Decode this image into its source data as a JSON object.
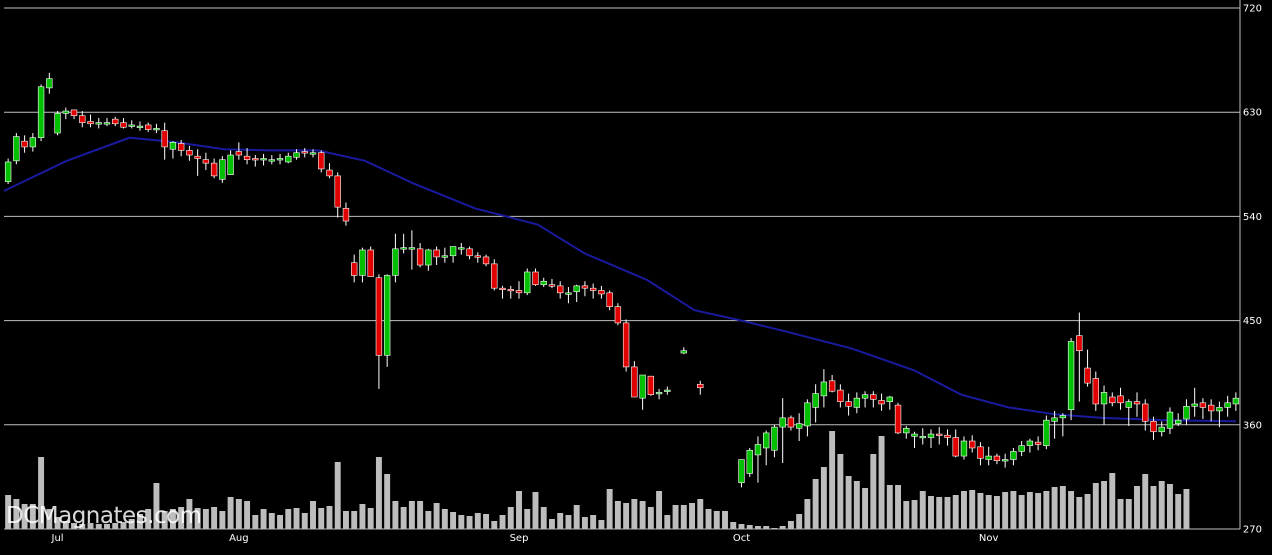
{
  "watermark": "DCMagnates.com",
  "colors": {
    "background": "#000000",
    "grid": "#bfbfbf",
    "up": "#00c000",
    "down": "#e00000",
    "wick": "#ffffff",
    "volume": "#bdbdbd",
    "ma": "#1a1a9e"
  },
  "chart_data": {
    "type": "candlestick",
    "title": "",
    "xlabel": "",
    "ylabel": "",
    "ylim": [
      270,
      720
    ],
    "yticks": [
      720,
      630,
      540,
      450,
      360,
      270
    ],
    "x_labels": [
      {
        "label": "Jul",
        "index": 6
      },
      {
        "label": "Aug",
        "index": 28
      },
      {
        "label": "Sep",
        "index": 62
      },
      {
        "label": "Oct",
        "index": 89
      },
      {
        "label": "Nov",
        "index": 119
      }
    ],
    "grid": true,
    "series": [
      {
        "type": "ohlc",
        "values": [
          [
            570,
            590,
            568,
            587
          ],
          [
            588,
            612,
            585,
            609
          ],
          [
            605,
            610,
            595,
            600
          ],
          [
            600,
            612,
            596,
            608
          ],
          [
            608,
            654,
            605,
            652
          ],
          [
            651,
            664,
            646,
            659
          ],
          [
            612,
            631,
            610,
            629
          ],
          [
            629,
            634,
            624,
            631
          ],
          [
            632,
            632,
            624,
            627
          ],
          [
            627,
            631,
            617,
            621
          ],
          [
            622,
            628,
            617,
            620
          ],
          [
            620,
            625,
            616,
            621
          ],
          [
            621,
            625,
            618,
            621
          ],
          [
            624,
            626,
            618,
            620
          ],
          [
            621,
            625,
            616,
            617
          ],
          [
            618,
            623,
            616,
            619
          ],
          [
            617,
            622,
            614,
            618
          ],
          [
            619,
            621,
            613,
            615
          ],
          [
            616,
            620,
            612,
            616
          ],
          [
            614,
            621,
            589,
            600
          ],
          [
            598,
            605,
            590,
            604
          ],
          [
            603,
            606,
            592,
            597
          ],
          [
            597,
            601,
            588,
            593
          ],
          [
            592,
            598,
            575,
            590
          ],
          [
            589,
            595,
            580,
            586
          ],
          [
            586,
            590,
            573,
            575
          ],
          [
            572,
            592,
            569,
            589
          ],
          [
            576,
            597,
            576,
            593
          ],
          [
            596,
            604,
            589,
            593
          ],
          [
            592,
            599,
            585,
            589
          ],
          [
            590,
            593,
            583,
            589
          ],
          [
            590,
            594,
            584,
            590
          ],
          [
            589,
            593,
            585,
            589
          ],
          [
            589,
            594,
            585,
            590
          ],
          [
            587,
            595,
            586,
            592
          ],
          [
            591,
            598,
            589,
            595
          ],
          [
            596,
            599,
            591,
            595
          ],
          [
            595,
            598,
            591,
            595
          ],
          [
            595,
            597,
            578,
            581
          ],
          [
            580,
            586,
            573,
            575
          ],
          [
            575,
            578,
            539,
            548
          ],
          [
            547,
            552,
            532,
            536
          ],
          [
            500,
            507,
            483,
            489
          ],
          [
            489,
            513,
            483,
            511
          ],
          [
            511,
            514,
            489,
            488
          ],
          [
            487,
            490,
            391,
            420
          ],
          [
            420,
            490,
            410,
            489
          ],
          [
            489,
            525,
            483,
            512
          ],
          [
            512,
            525,
            508,
            513
          ],
          [
            513,
            528,
            494,
            513
          ],
          [
            512,
            517,
            496,
            498
          ],
          [
            498,
            512,
            493,
            511
          ],
          [
            511,
            514,
            498,
            505
          ],
          [
            505,
            513,
            500,
            506
          ],
          [
            506,
            511,
            500,
            514
          ],
          [
            513,
            517,
            507,
            513
          ],
          [
            512,
            514,
            503,
            506
          ],
          [
            506,
            509,
            500,
            505
          ],
          [
            505,
            507,
            497,
            499
          ],
          [
            499,
            503,
            476,
            478
          ],
          [
            478,
            480,
            469,
            477
          ],
          [
            477,
            480,
            469,
            476
          ],
          [
            476,
            484,
            469,
            474
          ],
          [
            474,
            495,
            472,
            492
          ],
          [
            492,
            495,
            480,
            481
          ],
          [
            481,
            487,
            479,
            484
          ],
          [
            481,
            486,
            478,
            480
          ],
          [
            480,
            484,
            469,
            474
          ],
          [
            473,
            479,
            465,
            474
          ],
          [
            475,
            481,
            466,
            480
          ],
          [
            480,
            484,
            471,
            478
          ],
          [
            478,
            482,
            469,
            476
          ],
          [
            476,
            480,
            469,
            473
          ],
          [
            474,
            476,
            459,
            462
          ],
          [
            462,
            465,
            446,
            448
          ],
          [
            448,
            451,
            406,
            410
          ],
          [
            410,
            415,
            384,
            384
          ],
          [
            383,
            403,
            373,
            403
          ],
          [
            402,
            402,
            385,
            386
          ],
          [
            387,
            391,
            382,
            388
          ],
          [
            390,
            393,
            386,
            390
          ],
          [
            null,
            null,
            null,
            null
          ],
          [
            422,
            427,
            421,
            424
          ],
          [
            null,
            null,
            null,
            null
          ],
          [
            395,
            398,
            386,
            392
          ],
          [
            null,
            null,
            null,
            null
          ],
          [
            null,
            null,
            null,
            null
          ],
          [
            null,
            null,
            null,
            null
          ],
          [
            null,
            null,
            null,
            null
          ],
          [
            310,
            325,
            306,
            330
          ],
          [
            318,
            340,
            315,
            338
          ],
          [
            334,
            350,
            310,
            343
          ],
          [
            340,
            355,
            325,
            353
          ],
          [
            338,
            360,
            332,
            358
          ],
          [
            358,
            383,
            327,
            366
          ],
          [
            366,
            368,
            355,
            358
          ],
          [
            357,
            370,
            346,
            361
          ],
          [
            359,
            382,
            350,
            379
          ],
          [
            375,
            395,
            362,
            387
          ],
          [
            385,
            408,
            375,
            397
          ],
          [
            398,
            403,
            388,
            389
          ],
          [
            390,
            395,
            375,
            380
          ],
          [
            380,
            387,
            368,
            376
          ],
          [
            375,
            388,
            370,
            383
          ],
          [
            383,
            389,
            375,
            386
          ],
          [
            386,
            389,
            375,
            382
          ],
          [
            381,
            387,
            372,
            378
          ],
          [
            380,
            385,
            373,
            384
          ],
          [
            377,
            379,
            352,
            353
          ],
          [
            353,
            359,
            348,
            357
          ],
          [
            350,
            354,
            340,
            352
          ],
          [
            350,
            357,
            343,
            350
          ],
          [
            349,
            356,
            340,
            352
          ],
          [
            352,
            358,
            343,
            351
          ],
          [
            351,
            356,
            342,
            349
          ],
          [
            349,
            356,
            332,
            333
          ],
          [
            333,
            350,
            330,
            346
          ],
          [
            346,
            351,
            336,
            340
          ],
          [
            341,
            345,
            325,
            331
          ],
          [
            330,
            341,
            325,
            333
          ],
          [
            333,
            335,
            326,
            329
          ],
          [
            329,
            335,
            323,
            330
          ],
          [
            330,
            340,
            325,
            337
          ],
          [
            337,
            346,
            333,
            342
          ],
          [
            342,
            348,
            336,
            346
          ],
          [
            345,
            350,
            338,
            343
          ],
          [
            342,
            368,
            339,
            364
          ],
          [
            363,
            372,
            348,
            366
          ],
          [
            366,
            370,
            350,
            368
          ],
          [
            373,
            435,
            364,
            432
          ],
          [
            437,
            457,
            380,
            424
          ],
          [
            409,
            425,
            393,
            396
          ],
          [
            400,
            406,
            372,
            378
          ],
          [
            378,
            394,
            360,
            388
          ],
          [
            384,
            388,
            376,
            379
          ],
          [
            385,
            392,
            373,
            379
          ],
          [
            375,
            382,
            359,
            380
          ],
          [
            380,
            388,
            367,
            378
          ],
          [
            378,
            382,
            355,
            363
          ],
          [
            363,
            367,
            347,
            354
          ],
          [
            354,
            363,
            350,
            358
          ],
          [
            357,
            375,
            352,
            371
          ],
          [
            361,
            370,
            359,
            364
          ],
          [
            365,
            382,
            360,
            376
          ],
          [
            376,
            392,
            367,
            378
          ],
          [
            379,
            383,
            365,
            375
          ],
          [
            377,
            382,
            363,
            372
          ],
          [
            372,
            380,
            358,
            375
          ],
          [
            375,
            385,
            367,
            379
          ],
          [
            378,
            388,
            372,
            383
          ]
        ]
      },
      {
        "type": "ma",
        "values": [
          [
            0,
            562
          ],
          [
            8,
            588
          ],
          [
            16,
            608
          ],
          [
            22,
            604
          ],
          [
            28,
            598
          ],
          [
            34,
            597
          ],
          [
            40,
            597
          ],
          [
            46,
            588
          ],
          [
            52,
            569
          ],
          [
            60,
            547
          ],
          [
            68,
            533
          ],
          [
            74,
            508
          ],
          [
            82,
            485
          ],
          [
            88,
            459
          ],
          [
            94,
            450
          ],
          [
            100,
            440
          ],
          [
            108,
            426
          ],
          [
            116,
            407
          ],
          [
            122,
            386
          ],
          [
            128,
            375
          ],
          [
            134,
            369
          ],
          [
            140,
            366
          ],
          [
            148,
            364
          ],
          [
            157,
            363
          ]
        ]
      },
      {
        "type": "volume",
        "values": [
          34,
          30,
          25,
          25,
          72,
          20,
          12,
          8,
          6,
          5,
          6,
          5,
          5,
          6,
          7,
          10,
          15,
          20,
          46,
          18,
          20,
          22,
          30,
          21,
          20,
          22,
          18,
          32,
          30,
          28,
          14,
          20,
          16,
          14,
          20,
          21,
          16,
          28,
          21,
          23,
          67,
          18,
          18,
          25,
          21,
          72,
          55,
          28,
          22,
          28,
          28,
          18,
          26,
          20,
          17,
          14,
          13,
          16,
          15,
          8,
          14,
          22,
          38,
          20,
          37,
          22,
          10,
          16,
          14,
          24,
          12,
          14,
          9,
          40,
          28,
          26,
          30,
          28,
          22,
          38,
          14,
          24,
          24,
          26,
          30,
          20,
          18,
          18,
          7,
          5,
          4,
          3,
          3,
          1,
          3,
          8,
          15,
          30,
          50,
          62,
          98,
          75,
          53,
          48,
          41,
          75,
          93,
          44,
          44,
          28,
          29,
          38,
          33,
          32,
          32,
          34,
          38,
          39,
          36,
          34,
          33,
          37,
          38,
          34,
          37,
          36,
          38,
          42,
          43,
          38,
          32,
          35,
          46,
          48,
          56,
          30,
          30,
          43,
          55,
          43,
          48,
          45,
          35,
          40
        ]
      }
    ]
  }
}
